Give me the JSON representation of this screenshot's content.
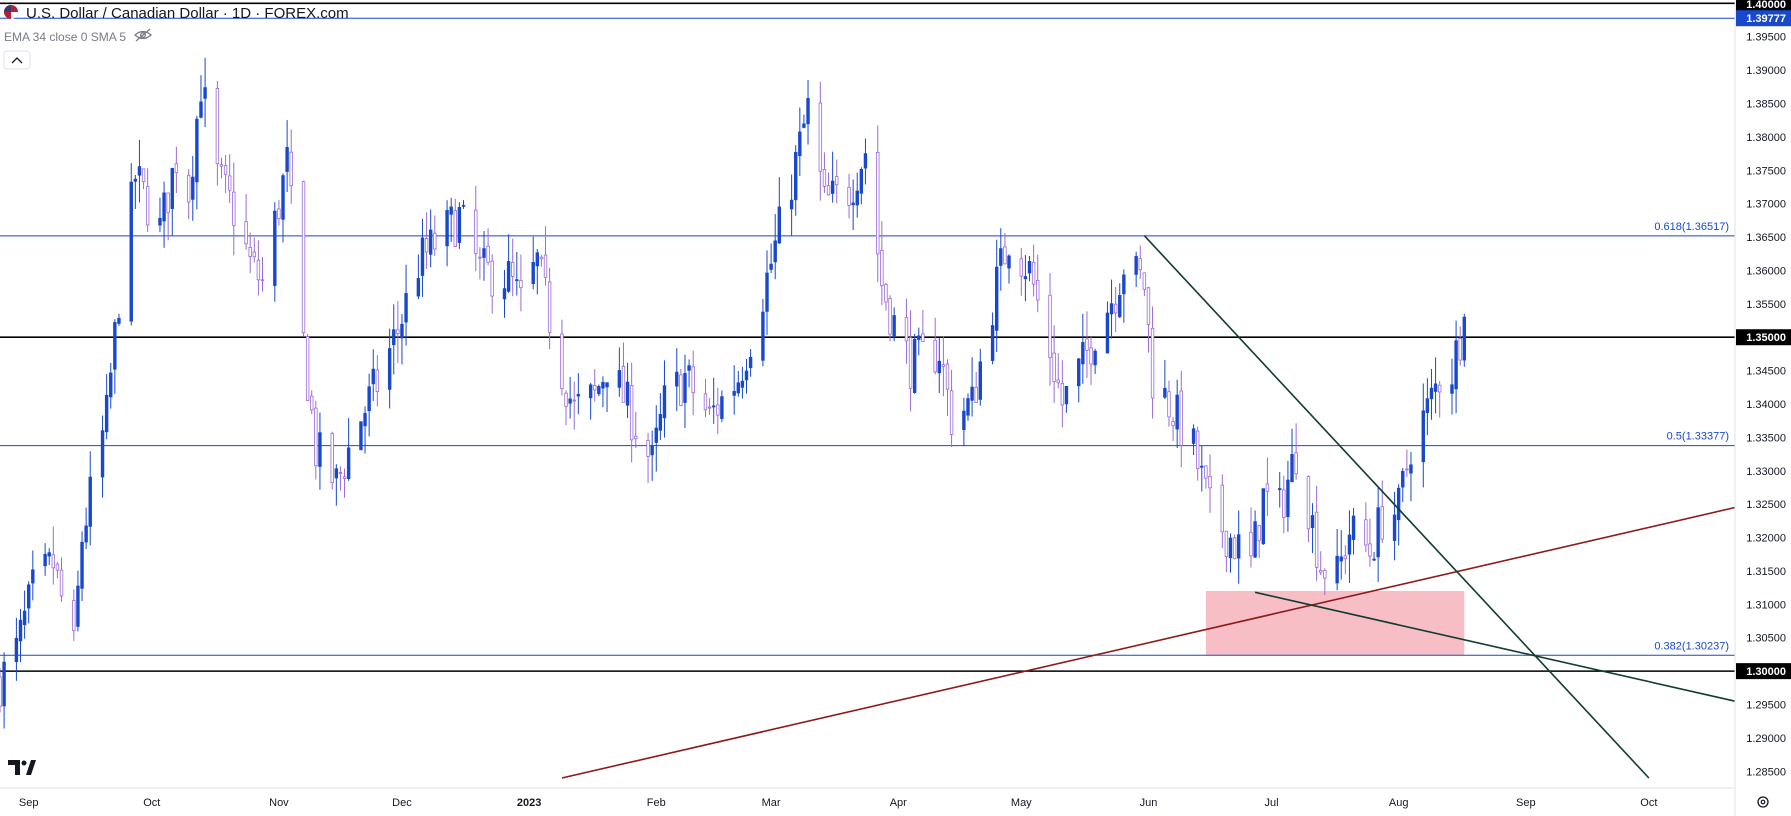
{
  "header": {
    "symbol_title": "U.S. Dollar / Canadian Dollar · 1D · FOREX.com",
    "indicator_label": "EMA 34 close 0 SMA 5",
    "flag_icon": "us-ca-flag-icon",
    "visibility_icon": "eye-off-icon",
    "collapse_icon": "chevron-up-icon"
  },
  "footer": {
    "settings_icon": "gear-icon"
  },
  "colors": {
    "up_candle": "#1848cc",
    "down_candle": "#9c6ad6",
    "fib_line": "#1848cc",
    "horizontal_level": "#000000",
    "rising_trendline": "#8b1a1a",
    "falling_trendline": "#0f3d2e",
    "support_zone": "#f7b7c0"
  },
  "chart_data": {
    "type": "candlestick",
    "title": "U.S. Dollar / Canadian Dollar · 1D · FOREX.com",
    "ylim": [
      1.2825,
      1.4005
    ],
    "x_start": "2022-08-25",
    "x_end": "2023-10-22",
    "price_ticks": [
      "1.28500",
      "1.29000",
      "1.29500",
      "1.30000",
      "1.30500",
      "1.31000",
      "1.31500",
      "1.32000",
      "1.32500",
      "1.33000",
      "1.33500",
      "1.34000",
      "1.34500",
      "1.35000",
      "1.35500",
      "1.36000",
      "1.36500",
      "1.37000",
      "1.37500",
      "1.38000",
      "1.38500",
      "1.39000",
      "1.39500",
      "1.40000"
    ],
    "month_ticks": [
      {
        "label": "Sep",
        "date": "2022-09-01"
      },
      {
        "label": "Oct",
        "date": "2022-10-01"
      },
      {
        "label": "Nov",
        "date": "2022-11-01"
      },
      {
        "label": "Dec",
        "date": "2022-12-01"
      },
      {
        "label": "2023",
        "date": "2023-01-01"
      },
      {
        "label": "Feb",
        "date": "2023-02-01"
      },
      {
        "label": "Mar",
        "date": "2023-03-01"
      },
      {
        "label": "Apr",
        "date": "2023-04-01"
      },
      {
        "label": "May",
        "date": "2023-05-01"
      },
      {
        "label": "Jun",
        "date": "2023-06-01"
      },
      {
        "label": "Jul",
        "date": "2023-07-01"
      },
      {
        "label": "Aug",
        "date": "2023-08-01"
      },
      {
        "label": "Sep",
        "date": "2023-09-01"
      },
      {
        "label": "Oct",
        "date": "2023-10-01"
      }
    ],
    "closes": [
      {
        "date": "2022-08-25",
        "c": 1.2985
      },
      {
        "date": "2022-08-29",
        "c": 1.303
      },
      {
        "date": "2022-09-02",
        "c": 1.312
      },
      {
        "date": "2022-09-07",
        "c": 1.316
      },
      {
        "date": "2022-09-12",
        "c": 1.303
      },
      {
        "date": "2022-09-14",
        "c": 1.32
      },
      {
        "date": "2022-09-20",
        "c": 1.338
      },
      {
        "date": "2022-09-23",
        "c": 1.356
      },
      {
        "date": "2022-09-27",
        "c": 1.374
      },
      {
        "date": "2022-10-03",
        "c": 1.366
      },
      {
        "date": "2022-10-07",
        "c": 1.377
      },
      {
        "date": "2022-10-10",
        "c": 1.372
      },
      {
        "date": "2022-10-13",
        "c": 1.388
      },
      {
        "date": "2022-10-17",
        "c": 1.374
      },
      {
        "date": "2022-10-21",
        "c": 1.369
      },
      {
        "date": "2022-10-25",
        "c": 1.361
      },
      {
        "date": "2022-10-28",
        "c": 1.358
      },
      {
        "date": "2022-11-03",
        "c": 1.376
      },
      {
        "date": "2022-11-07",
        "c": 1.349
      },
      {
        "date": "2022-11-10",
        "c": 1.333
      },
      {
        "date": "2022-11-15",
        "c": 1.328
      },
      {
        "date": "2022-11-21",
        "c": 1.338
      },
      {
        "date": "2022-11-25",
        "c": 1.343
      },
      {
        "date": "2022-11-30",
        "c": 1.351
      },
      {
        "date": "2022-12-05",
        "c": 1.361
      },
      {
        "date": "2022-12-09",
        "c": 1.364
      },
      {
        "date": "2022-12-15",
        "c": 1.368
      },
      {
        "date": "2022-12-20",
        "c": 1.36
      },
      {
        "date": "2022-12-27",
        "c": 1.359
      },
      {
        "date": "2022-12-30",
        "c": 1.355
      },
      {
        "date": "2023-01-03",
        "c": 1.361
      },
      {
        "date": "2023-01-09",
        "c": 1.345
      },
      {
        "date": "2023-01-12",
        "c": 1.339
      },
      {
        "date": "2023-01-17",
        "c": 1.341
      },
      {
        "date": "2023-01-20",
        "c": 1.346
      },
      {
        "date": "2023-01-24",
        "c": 1.341
      },
      {
        "date": "2023-01-31",
        "c": 1.331
      },
      {
        "date": "2023-02-03",
        "c": 1.34
      },
      {
        "date": "2023-02-08",
        "c": 1.344
      },
      {
        "date": "2023-02-14",
        "c": 1.338
      },
      {
        "date": "2023-02-21",
        "c": 1.344
      },
      {
        "date": "2023-02-24",
        "c": 1.35
      },
      {
        "date": "2023-03-01",
        "c": 1.361
      },
      {
        "date": "2023-03-07",
        "c": 1.376
      },
      {
        "date": "2023-03-10",
        "c": 1.384
      },
      {
        "date": "2023-03-14",
        "c": 1.37
      },
      {
        "date": "2023-03-20",
        "c": 1.372
      },
      {
        "date": "2023-03-24",
        "c": 1.378
      },
      {
        "date": "2023-03-28",
        "c": 1.358
      },
      {
        "date": "2023-03-31",
        "c": 1.352
      },
      {
        "date": "2023-04-04",
        "c": 1.346
      },
      {
        "date": "2023-04-11",
        "c": 1.348
      },
      {
        "date": "2023-04-14",
        "c": 1.338
      },
      {
        "date": "2023-04-19",
        "c": 1.34
      },
      {
        "date": "2023-04-25",
        "c": 1.358
      },
      {
        "date": "2023-04-28",
        "c": 1.365
      },
      {
        "date": "2023-05-03",
        "c": 1.36
      },
      {
        "date": "2023-05-08",
        "c": 1.348
      },
      {
        "date": "2023-05-11",
        "c": 1.34
      },
      {
        "date": "2023-05-16",
        "c": 1.346
      },
      {
        "date": "2023-05-19",
        "c": 1.351
      },
      {
        "date": "2023-05-24",
        "c": 1.357
      },
      {
        "date": "2023-05-26",
        "c": 1.361
      },
      {
        "date": "2023-05-31",
        "c": 1.358
      },
      {
        "date": "2023-06-02",
        "c": 1.344
      },
      {
        "date": "2023-06-07",
        "c": 1.339
      },
      {
        "date": "2023-06-12",
        "c": 1.333
      },
      {
        "date": "2023-06-16",
        "c": 1.324
      },
      {
        "date": "2023-06-21",
        "c": 1.32
      },
      {
        "date": "2023-06-26",
        "c": 1.316
      },
      {
        "date": "2023-06-29",
        "c": 1.326
      },
      {
        "date": "2023-07-03",
        "c": 1.324
      },
      {
        "date": "2023-07-07",
        "c": 1.333
      },
      {
        "date": "2023-07-10",
        "c": 1.325
      },
      {
        "date": "2023-07-13",
        "c": 1.316
      },
      {
        "date": "2023-07-17",
        "c": 1.314
      },
      {
        "date": "2023-07-20",
        "c": 1.321
      },
      {
        "date": "2023-07-25",
        "c": 1.318
      },
      {
        "date": "2023-07-28",
        "c": 1.323
      },
      {
        "date": "2023-08-01",
        "c": 1.324
      },
      {
        "date": "2023-08-04",
        "c": 1.334
      },
      {
        "date": "2023-08-08",
        "c": 1.339
      },
      {
        "date": "2023-08-11",
        "c": 1.344
      },
      {
        "date": "2023-08-14",
        "c": 1.345
      },
      {
        "date": "2023-08-17",
        "c": 1.353
      }
    ],
    "horizontal_levels": [
      {
        "value": 1.4,
        "label": "1.40000"
      },
      {
        "value": 1.35,
        "label": "1.35000"
      },
      {
        "value": 1.3,
        "label": "1.30000"
      }
    ],
    "fib_levels": [
      {
        "value": 1.39777,
        "label": "1.39777"
      },
      {
        "value": 1.36517,
        "label": "0.618(1.36517)"
      },
      {
        "value": 1.33377,
        "label": "0.5(1.33377)"
      },
      {
        "value": 1.30237,
        "label": "0.382(1.30237)"
      }
    ],
    "trendlines": [
      {
        "name": "rising-support",
        "from": {
          "date": "2023-01-09",
          "price": 1.284
        },
        "to": {
          "date": "2023-10-22",
          "price": 1.3245
        }
      },
      {
        "name": "falling-resistance",
        "from": {
          "date": "2023-05-31",
          "price": 1.3652
        },
        "to": {
          "date": "2023-10-01",
          "price": 1.284
        }
      },
      {
        "name": "descending-support",
        "from": {
          "date": "2023-06-27",
          "price": 1.3118
        },
        "to": {
          "date": "2023-10-22",
          "price": 1.2955
        }
      }
    ],
    "support_zone": {
      "from": "2023-06-15",
      "to": "2023-08-17",
      "low": 1.30237,
      "high": 1.312
    }
  }
}
